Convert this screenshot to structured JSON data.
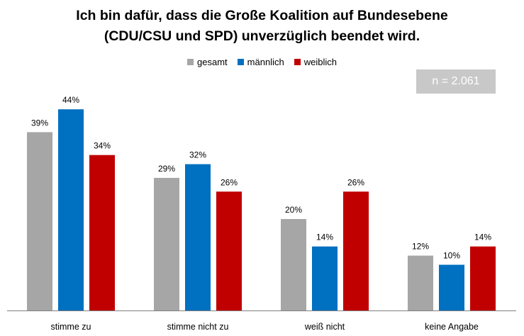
{
  "title_line1": "Ich bin dafür, dass die Große Koalition auf Bundesebene",
  "title_line2": "(CDU/CSU und SPD) unverzüglich beendet wird.",
  "sample_note": "n = 2.061",
  "chart_data": {
    "type": "bar",
    "categories": [
      "stimme zu",
      "stimme nicht zu",
      "weiß nicht",
      "keine Angabe"
    ],
    "series": [
      {
        "name": "gesamt",
        "color": "#a6a6a6",
        "values": [
          39,
          29,
          20,
          12
        ],
        "labels": [
          "39%",
          "29%",
          "20%",
          "12%"
        ]
      },
      {
        "name": "männlich",
        "color": "#0070c0",
        "values": [
          44,
          32,
          14,
          10
        ],
        "labels": [
          "44%",
          "32%",
          "14%",
          "10%"
        ]
      },
      {
        "name": "weiblich",
        "color": "#c00000",
        "values": [
          34,
          26,
          26,
          14
        ],
        "labels": [
          "34%",
          "26%",
          "26%",
          "14%"
        ]
      }
    ],
    "ylim": [
      0,
      45
    ],
    "grid": false,
    "legend": "top-center"
  }
}
